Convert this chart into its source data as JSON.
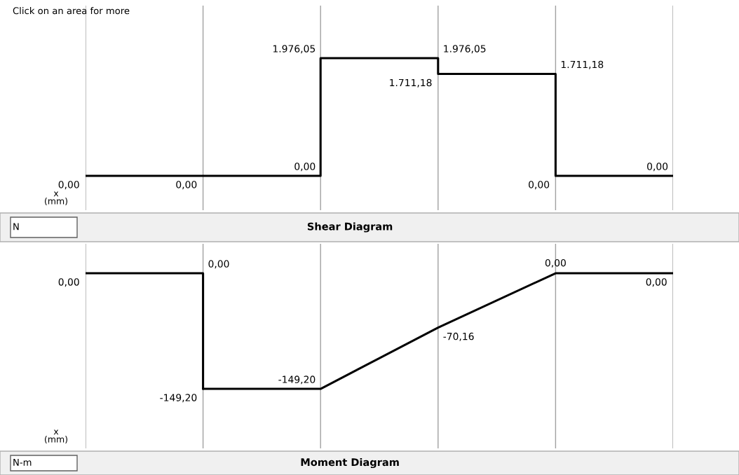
{
  "chart_data": [
    {
      "type": "step",
      "title": "Shear Diagram",
      "xlabel": "x\n(mm)",
      "annotations": [
        "Click on an area for more",
        "N",
        "0,00",
        "1.976,05",
        "1.711,18"
      ],
      "categories": [
        null,
        null,
        null,
        null,
        null,
        null
      ],
      "ylim": [
        -576,
        2858
      ],
      "grid": "x",
      "series": [
        {
          "color": "#000000",
          "values": [
            0,
            0,
            1976.05,
            1711.18,
            0,
            0
          ],
          "value_labels": [
            "0,00",
            "0,00",
            "1.976,05",
            "1.711,18",
            "0,00",
            "0,00"
          ]
        }
      ]
    },
    {
      "type": "line",
      "title": "Moment Diagram",
      "xlabel": "x\n(mm)",
      "annotations": [
        "N-m",
        "0,00"
      ],
      "categories": [
        null,
        null,
        null,
        null,
        null,
        null
      ],
      "ylim": [
        -226,
        38
      ],
      "grid": "x",
      "series": [
        {
          "type": "step",
          "color": "#000000",
          "values": [
            0,
            -149.2,
            null,
            null,
            null,
            null
          ],
          "value_labels": [
            "0,00",
            "-149,20",
            null,
            null,
            null,
            null
          ]
        },
        {
          "color": "#000000",
          "values": [
            null,
            -149.2,
            -149.2,
            -70.16,
            0,
            0
          ],
          "value_labels": [
            null,
            null,
            "-149,20",
            "-70,16",
            "0,00",
            "0,00"
          ]
        }
      ]
    }
  ]
}
